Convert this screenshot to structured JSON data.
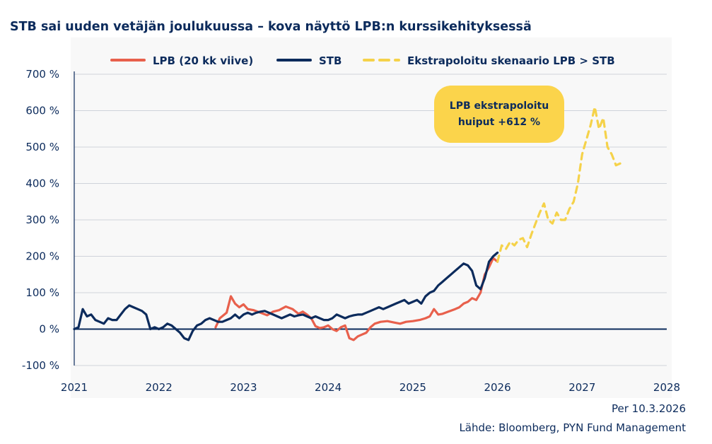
{
  "chart_data": {
    "type": "line",
    "title": "STB sai uuden vetäjän joulukuussa – kova näyttö LPB:n kurssikehityksessä",
    "xlabel": "",
    "ylabel": "",
    "xlim": [
      2021,
      2028
    ],
    "ylim": [
      -100,
      700
    ],
    "x_ticks": [
      2021,
      2022,
      2023,
      2024,
      2025,
      2026,
      2027,
      2028
    ],
    "x_tick_labels": [
      "2021",
      "2022",
      "2023",
      "2024",
      "2025",
      "2026",
      "2027",
      "2028"
    ],
    "y_ticks": [
      -100,
      0,
      100,
      200,
      300,
      400,
      500,
      600,
      700
    ],
    "y_tick_labels": [
      "-100 %",
      "0 %",
      "100 %",
      "200 %",
      "300 %",
      "400 %",
      "500 %",
      "600 %",
      "700 %"
    ],
    "grid": true,
    "legend_position": "top",
    "series": [
      {
        "name": "LPB (20 kk viive)",
        "color": "#e8604c",
        "style": "solid",
        "x": [
          2022.67,
          2022.72,
          2022.8,
          2022.85,
          2022.9,
          2022.95,
          2023.0,
          2023.05,
          2023.12,
          2023.2,
          2023.28,
          2023.35,
          2023.42,
          2023.5,
          2023.58,
          2023.65,
          2023.7,
          2023.75,
          2023.8,
          2023.85,
          2023.9,
          2023.95,
          2024.0,
          2024.05,
          2024.1,
          2024.15,
          2024.2,
          2024.25,
          2024.3,
          2024.35,
          2024.4,
          2024.45,
          2024.5,
          2024.55,
          2024.62,
          2024.7,
          2024.78,
          2024.85,
          2024.92,
          2025.0,
          2025.08,
          2025.15,
          2025.2,
          2025.25,
          2025.3,
          2025.35,
          2025.42,
          2025.5,
          2025.55,
          2025.6,
          2025.65,
          2025.7,
          2025.75,
          2025.8,
          2025.85,
          2025.9,
          2025.95,
          2026.0
        ],
        "y": [
          5,
          30,
          45,
          90,
          70,
          60,
          68,
          55,
          52,
          45,
          38,
          48,
          52,
          62,
          55,
          42,
          48,
          40,
          30,
          8,
          3,
          5,
          10,
          0,
          -5,
          5,
          10,
          -25,
          -30,
          -20,
          -15,
          -10,
          5,
          15,
          20,
          22,
          18,
          15,
          20,
          22,
          25,
          30,
          35,
          55,
          40,
          42,
          48,
          55,
          60,
          70,
          75,
          85,
          80,
          100,
          150,
          170,
          195,
          185
        ]
      },
      {
        "name": "STB",
        "color": "#0c2b5c",
        "style": "solid",
        "x": [
          2021.0,
          2021.05,
          2021.1,
          2021.15,
          2021.2,
          2021.25,
          2021.3,
          2021.35,
          2021.4,
          2021.45,
          2021.5,
          2021.55,
          2021.6,
          2021.65,
          2021.7,
          2021.75,
          2021.8,
          2021.85,
          2021.9,
          2021.95,
          2022.0,
          2022.05,
          2022.1,
          2022.15,
          2022.2,
          2022.25,
          2022.3,
          2022.35,
          2022.4,
          2022.45,
          2022.5,
          2022.55,
          2022.6,
          2022.65,
          2022.7,
          2022.75,
          2022.8,
          2022.85,
          2022.9,
          2022.95,
          2023.0,
          2023.05,
          2023.1,
          2023.15,
          2023.2,
          2023.25,
          2023.3,
          2023.35,
          2023.4,
          2023.45,
          2023.5,
          2023.55,
          2023.6,
          2023.65,
          2023.7,
          2023.75,
          2023.8,
          2023.85,
          2023.9,
          2023.95,
          2024.0,
          2024.05,
          2024.1,
          2024.15,
          2024.2,
          2024.25,
          2024.3,
          2024.35,
          2024.4,
          2024.45,
          2024.5,
          2024.55,
          2024.6,
          2024.65,
          2024.7,
          2024.75,
          2024.8,
          2024.85,
          2024.9,
          2024.95,
          2025.0,
          2025.05,
          2025.1,
          2025.15,
          2025.2,
          2025.25,
          2025.3,
          2025.35,
          2025.4,
          2025.45,
          2025.5,
          2025.55,
          2025.6,
          2025.65,
          2025.7,
          2025.75,
          2025.8,
          2025.85,
          2025.9,
          2025.95,
          2026.0
        ],
        "y": [
          0,
          5,
          55,
          35,
          40,
          25,
          20,
          15,
          30,
          25,
          25,
          40,
          55,
          65,
          60,
          55,
          50,
          40,
          0,
          5,
          0,
          5,
          15,
          10,
          0,
          -10,
          -25,
          -30,
          -5,
          10,
          15,
          25,
          30,
          25,
          20,
          20,
          25,
          30,
          40,
          30,
          40,
          45,
          40,
          45,
          48,
          50,
          45,
          40,
          35,
          30,
          35,
          40,
          35,
          38,
          40,
          35,
          30,
          35,
          30,
          25,
          25,
          30,
          40,
          35,
          30,
          35,
          38,
          40,
          40,
          45,
          50,
          55,
          60,
          55,
          60,
          65,
          70,
          75,
          80,
          70,
          75,
          80,
          70,
          90,
          100,
          105,
          120,
          130,
          140,
          150,
          160,
          170,
          180,
          175,
          160,
          120,
          110,
          140,
          185,
          200,
          210
        ]
      },
      {
        "name": "Ekstrapoloitu skenaario LPB > STB",
        "color": "#f5d24a",
        "style": "dashed",
        "x": [
          2026.0,
          2026.05,
          2026.1,
          2026.15,
          2026.2,
          2026.25,
          2026.3,
          2026.35,
          2026.4,
          2026.45,
          2026.5,
          2026.55,
          2026.6,
          2026.65,
          2026.7,
          2026.75,
          2026.8,
          2026.85,
          2026.9,
          2026.95,
          2027.0,
          2027.05,
          2027.1,
          2027.15,
          2027.2,
          2027.25,
          2027.3,
          2027.35,
          2027.4,
          2027.45,
          2027.5
        ],
        "y": [
          185,
          230,
          220,
          240,
          230,
          245,
          250,
          225,
          260,
          290,
          320,
          345,
          300,
          290,
          320,
          300,
          300,
          330,
          350,
          400,
          480,
          520,
          560,
          610,
          550,
          580,
          500,
          480,
          450,
          455,
          450
        ]
      }
    ],
    "annotations": [
      {
        "lines": [
          "LPB ekstrapoloitu",
          "huiput +612 %"
        ],
        "background": "#fbd44b"
      }
    ]
  },
  "footer": {
    "date": "Per 10.3.2026",
    "source": "Lähde: Bloomberg, PYN Fund Management"
  }
}
